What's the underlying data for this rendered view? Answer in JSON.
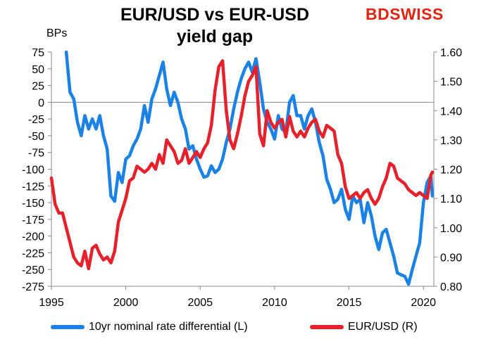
{
  "colors": {
    "blue": "#1a82e6",
    "red": "#e8202a",
    "brand": "#e42313"
  },
  "brand": {
    "logo_text": "BDSWISS"
  },
  "chart_data": {
    "type": "line",
    "title": "EUR/USD vs EUR-USD\nyield gap",
    "left_axis_unit": "BPs",
    "x_ticks": [
      "1995",
      "2000",
      "2005",
      "2010",
      "2015",
      "2020"
    ],
    "x_range": [
      1995,
      2020.7
    ],
    "y_left": {
      "range": [
        -275,
        75
      ],
      "ticks": [
        "75",
        "50",
        "25",
        "0",
        "-25",
        "-50",
        "-75",
        "-100",
        "-125",
        "-150",
        "-175",
        "-200",
        "-225",
        "-250",
        "-275"
      ]
    },
    "y_right": {
      "range": [
        0.8,
        1.6
      ],
      "ticks": [
        "1.60",
        "1.50",
        "1.40",
        "1.30",
        "1.20",
        "1.10",
        "1.00",
        "0.90",
        "0.80"
      ]
    },
    "series": [
      {
        "name": "10yr nominal rate differential (L)",
        "axis": "left",
        "x": [
          1996.0,
          1996.25,
          1996.5,
          1996.75,
          1997.0,
          1997.25,
          1997.5,
          1997.75,
          1998.0,
          1998.25,
          1998.5,
          1998.75,
          1999.0,
          1999.25,
          1999.5,
          1999.75,
          2000.0,
          2000.25,
          2000.5,
          2000.75,
          2001.0,
          2001.25,
          2001.5,
          2001.75,
          2002.0,
          2002.25,
          2002.5,
          2002.75,
          2003.0,
          2003.25,
          2003.5,
          2003.75,
          2004.0,
          2004.25,
          2004.5,
          2004.75,
          2005.0,
          2005.25,
          2005.5,
          2005.75,
          2006.0,
          2006.25,
          2006.5,
          2006.75,
          2007.0,
          2007.25,
          2007.5,
          2007.75,
          2008.0,
          2008.25,
          2008.5,
          2008.75,
          2009.0,
          2009.25,
          2009.5,
          2009.75,
          2010.0,
          2010.25,
          2010.5,
          2010.75,
          2011.0,
          2011.25,
          2011.5,
          2011.75,
          2012.0,
          2012.25,
          2012.5,
          2012.75,
          2013.0,
          2013.25,
          2013.5,
          2013.75,
          2014.0,
          2014.25,
          2014.5,
          2014.75,
          2015.0,
          2015.25,
          2015.5,
          2015.75,
          2016.0,
          2016.25,
          2016.5,
          2016.75,
          2017.0,
          2017.25,
          2017.5,
          2017.75,
          2018.0,
          2018.25,
          2018.5,
          2018.75,
          2019.0,
          2019.25,
          2019.5,
          2019.75,
          2020.0,
          2020.25,
          2020.5,
          2020.6
        ],
        "values": [
          75,
          15,
          5,
          -30,
          -50,
          -20,
          -40,
          -25,
          -40,
          -20,
          -50,
          -70,
          -140,
          -148,
          -105,
          -120,
          -85,
          -80,
          -65,
          -55,
          -40,
          -5,
          -30,
          5,
          20,
          40,
          60,
          20,
          -5,
          15,
          0,
          -25,
          -40,
          -70,
          -65,
          -85,
          -100,
          -112,
          -110,
          -95,
          -105,
          -100,
          -85,
          -60,
          -40,
          -10,
          15,
          35,
          50,
          60,
          45,
          65,
          30,
          -10,
          -30,
          -40,
          -55,
          -20,
          -40,
          -45,
          0,
          10,
          -20,
          -20,
          -40,
          -20,
          -10,
          -30,
          -60,
          -80,
          -115,
          -130,
          -150,
          -145,
          -130,
          -160,
          -175,
          -140,
          -150,
          -145,
          -180,
          -150,
          -170,
          -200,
          -220,
          -195,
          -190,
          -210,
          -230,
          -255,
          -258,
          -260,
          -272,
          -250,
          -230,
          -210,
          -150,
          -120,
          -110,
          -140
        ]
      },
      {
        "name": "EUR/USD (R)",
        "axis": "right",
        "x": [
          1995.0,
          1995.25,
          1995.5,
          1995.75,
          1996.0,
          1996.25,
          1996.5,
          1996.75,
          1997.0,
          1997.25,
          1997.5,
          1997.75,
          1998.0,
          1998.25,
          1998.5,
          1998.75,
          1999.0,
          1999.25,
          1999.5,
          1999.75,
          2000.0,
          2000.25,
          2000.5,
          2000.75,
          2001.0,
          2001.25,
          2001.5,
          2001.75,
          2002.0,
          2002.25,
          2002.5,
          2002.75,
          2003.0,
          2003.25,
          2003.5,
          2003.75,
          2004.0,
          2004.25,
          2004.5,
          2004.75,
          2005.0,
          2005.25,
          2005.5,
          2005.75,
          2006.0,
          2006.25,
          2006.5,
          2006.75,
          2007.0,
          2007.25,
          2007.5,
          2007.75,
          2008.0,
          2008.25,
          2008.5,
          2008.75,
          2009.0,
          2009.25,
          2009.5,
          2009.75,
          2010.0,
          2010.25,
          2010.5,
          2010.75,
          2011.0,
          2011.25,
          2011.5,
          2011.75,
          2012.0,
          2012.25,
          2012.5,
          2012.75,
          2013.0,
          2013.25,
          2013.5,
          2013.75,
          2014.0,
          2014.25,
          2014.5,
          2014.75,
          2015.0,
          2015.25,
          2015.5,
          2015.75,
          2016.0,
          2016.25,
          2016.5,
          2016.75,
          2017.0,
          2017.25,
          2017.5,
          2017.75,
          2018.0,
          2018.25,
          2018.5,
          2018.75,
          2019.0,
          2019.25,
          2019.5,
          2019.75,
          2020.0,
          2020.25,
          2020.5,
          2020.6
        ],
        "values": [
          1.17,
          1.08,
          1.05,
          1.05,
          1.0,
          0.95,
          0.9,
          0.88,
          0.87,
          0.92,
          0.86,
          0.93,
          0.94,
          0.91,
          0.89,
          0.9,
          0.88,
          0.92,
          1.02,
          1.06,
          1.1,
          1.16,
          1.17,
          1.21,
          1.2,
          1.19,
          1.2,
          1.22,
          1.2,
          1.25,
          1.22,
          1.3,
          1.28,
          1.26,
          1.22,
          1.23,
          1.27,
          1.22,
          1.24,
          1.26,
          1.24,
          1.27,
          1.29,
          1.35,
          1.47,
          1.55,
          1.57,
          1.4,
          1.3,
          1.27,
          1.32,
          1.38,
          1.45,
          1.5,
          1.52,
          1.55,
          1.32,
          1.28,
          1.4,
          1.36,
          1.34,
          1.36,
          1.37,
          1.31,
          1.38,
          1.33,
          1.31,
          1.33,
          1.31,
          1.34,
          1.36,
          1.37,
          1.33,
          1.31,
          1.35,
          1.34,
          1.33,
          1.25,
          1.22,
          1.14,
          1.1,
          1.11,
          1.12,
          1.1,
          1.12,
          1.13,
          1.1,
          1.08,
          1.1,
          1.14,
          1.17,
          1.22,
          1.21,
          1.17,
          1.16,
          1.15,
          1.13,
          1.12,
          1.11,
          1.12,
          1.11,
          1.1,
          1.18,
          1.19
        ]
      }
    ],
    "legend_position": "bottom",
    "grid": false
  }
}
